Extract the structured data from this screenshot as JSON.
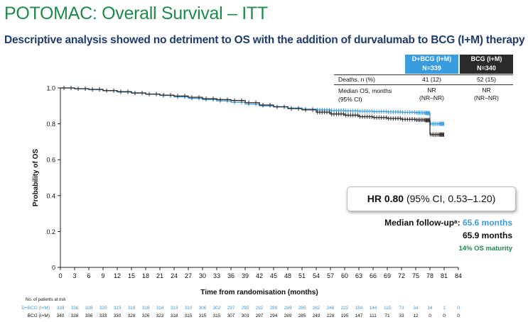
{
  "title": "POTOMAC: Overall Survival – ITT",
  "subtitle": "Descriptive analysis showed no detriment to OS with the addition of durvalumab to BCG (I+M) therapy",
  "table": {
    "arm1_name": "D+BCG (I+M)",
    "arm1_n": "N=339",
    "arm2_name": "BCG (I+M)",
    "arm2_n": "N=340",
    "rows": [
      {
        "label": "Deaths, n (%)",
        "arm1": "41 (12)",
        "arm2": "52 (15)"
      },
      {
        "label": "Median OS, months",
        "label2": "(95% CI)",
        "arm1": "NR",
        "arm1b": "(NR–NR)",
        "arm2": "NR",
        "arm2b": "(NR–NR)"
      }
    ]
  },
  "hr_box": {
    "bold": "HR 0.80",
    "rest": " (95% CI, 0.53–1.20)"
  },
  "followup": {
    "label": "Median follow-upᵃ: ",
    "arm1": "65.6 months",
    "arm2": "65.9 months"
  },
  "maturity": "14% OS maturity",
  "colors": {
    "arm1": "#3b9be0",
    "arm2": "#2a2a2a",
    "title": "#1f8a4c",
    "subtitle": "#1e3c6e"
  },
  "chart_data": {
    "type": "line",
    "title": "",
    "xlabel": "Time from randomisation (months)",
    "ylabel": "Probability of OS",
    "xlim": [
      0,
      84
    ],
    "ylim": [
      0,
      1.0
    ],
    "xticks": [
      0,
      3,
      6,
      9,
      12,
      15,
      18,
      21,
      24,
      27,
      30,
      33,
      36,
      39,
      42,
      45,
      48,
      51,
      54,
      57,
      60,
      63,
      66,
      69,
      72,
      75,
      78,
      81,
      84
    ],
    "yticks": [
      0,
      0.2,
      0.4,
      0.6,
      0.8,
      1.0
    ],
    "ytick_labels": [
      "0",
      "0.2",
      "0.4",
      "0.6",
      "0.8",
      "1.0"
    ],
    "series": [
      {
        "name": "D+BCG (I+M)",
        "x": [
          0,
          3,
          6,
          9,
          12,
          15,
          18,
          21,
          24,
          27,
          30,
          33,
          36,
          39,
          42,
          45,
          48,
          51,
          54,
          57,
          60,
          63,
          66,
          69,
          72,
          75,
          77,
          78,
          80,
          81
        ],
        "y": [
          1.0,
          0.995,
          0.99,
          0.985,
          0.98,
          0.972,
          0.965,
          0.958,
          0.95,
          0.942,
          0.935,
          0.928,
          0.92,
          0.91,
          0.9,
          0.895,
          0.888,
          0.882,
          0.878,
          0.874,
          0.872,
          0.87,
          0.868,
          0.866,
          0.864,
          0.862,
          0.86,
          0.8,
          0.8,
          0.8
        ]
      },
      {
        "name": "BCG (I+M)",
        "x": [
          0,
          3,
          6,
          9,
          12,
          15,
          18,
          21,
          24,
          27,
          30,
          33,
          36,
          39,
          42,
          45,
          48,
          51,
          54,
          57,
          60,
          63,
          66,
          69,
          72,
          75,
          77,
          78,
          80,
          81
        ],
        "y": [
          1.0,
          0.996,
          0.992,
          0.985,
          0.978,
          0.972,
          0.966,
          0.96,
          0.955,
          0.948,
          0.94,
          0.935,
          0.93,
          0.918,
          0.905,
          0.895,
          0.885,
          0.878,
          0.865,
          0.855,
          0.848,
          0.84,
          0.835,
          0.83,
          0.825,
          0.822,
          0.82,
          0.74,
          0.74,
          0.74
        ]
      }
    ],
    "at_risk": {
      "title": "No. of patients at risk",
      "rows": [
        {
          "name": "D+BCG (I+M)",
          "values": [
            339,
            336,
            328,
            325,
            323,
            319,
            318,
            314,
            313,
            310,
            306,
            302,
            297,
            295,
            292,
            289,
            289,
            285,
            282,
            246,
            222,
            184,
            144,
            115,
            73,
            34,
            14,
            1,
            0
          ]
        },
        {
          "name": "BCG (I+M)",
          "values": [
            340,
            338,
            336,
            333,
            330,
            328,
            326,
            323,
            318,
            315,
            315,
            315,
            307,
            303,
            297,
            294,
            289,
            285,
            249,
            228,
            195,
            147,
            111,
            71,
            33,
            12,
            0,
            0,
            0
          ]
        }
      ]
    }
  }
}
